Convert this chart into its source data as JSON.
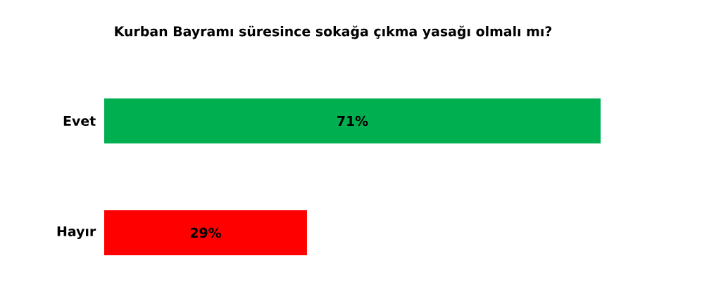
{
  "chart_data": {
    "type": "bar",
    "orientation": "horizontal",
    "title": "Kurban Bayramı süresince sokağa çıkma yasağı olmalı mı?",
    "categories": [
      "Evet",
      "Hayır"
    ],
    "values": [
      71,
      29
    ],
    "colors": [
      "#00b050",
      "#ff0000"
    ],
    "value_labels": [
      "71%",
      "29%"
    ]
  }
}
